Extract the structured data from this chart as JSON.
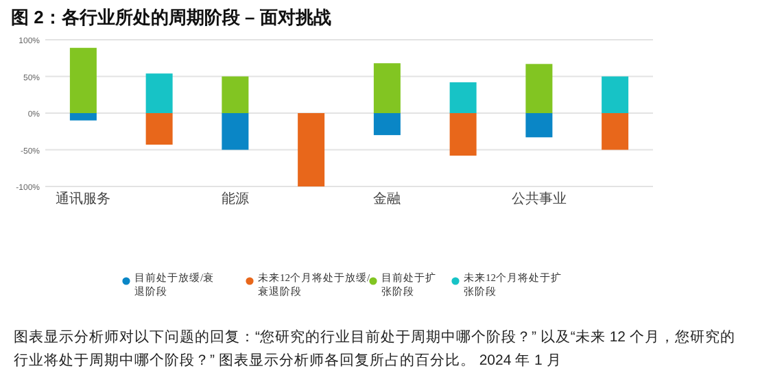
{
  "chart_data": {
    "type": "bar",
    "title": "图 2：各行业所处的周期阶段 – 面对挑战",
    "categories": [
      "通讯服务",
      null,
      "能源",
      null,
      "金融",
      null,
      "公共事业",
      null
    ],
    "stacked": true,
    "series": [
      {
        "name": "目前处于放缓/衰退阶段",
        "color": "#0a86c6",
        "values": [
          -10,
          null,
          -50,
          null,
          -30,
          null,
          -33,
          null
        ]
      },
      {
        "name": "未来12个月将处于放缓/衰退阶段",
        "color": "#e8671b",
        "values": [
          null,
          -43,
          null,
          -100,
          null,
          -58,
          null,
          -50
        ]
      },
      {
        "name": "目前处于扩张阶段",
        "color": "#82c522",
        "values": [
          89,
          null,
          50,
          null,
          68,
          null,
          67,
          null
        ]
      },
      {
        "name": "未来12个月将处于扩张阶段",
        "color": "#17c3c6",
        "values": [
          null,
          54,
          null,
          0,
          null,
          42,
          null,
          50
        ]
      }
    ],
    "ylim": [
      -100,
      100
    ],
    "yticks": [
      {
        "value": -100,
        "label": "-100%"
      },
      {
        "value": -50,
        "label": "-50%"
      },
      {
        "value": 0,
        "label": "0%"
      },
      {
        "value": 50,
        "label": "50%"
      },
      {
        "value": 100,
        "label": "100%"
      }
    ],
    "grid": "y",
    "legend": "bottom",
    "annotations": [
      "图表显示分析师对以下问题的回复：“您研究的行业目前处于周期中哪个阶段？” 以及“未来 12 个月，您研究的行业将处于周期中哪个阶段？” 图表显示分析师各回复所占的百分比。 2024 年 1 月"
    ]
  }
}
